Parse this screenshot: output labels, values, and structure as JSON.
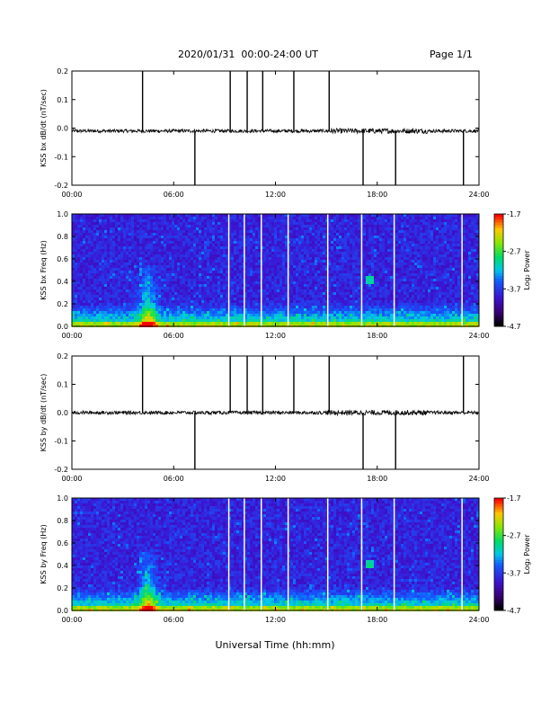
{
  "header": {
    "title": "2020/01/31  00:00-24:00 UT",
    "page": "Page 1/1"
  },
  "x_axis_title": "Universal Time (hh:mm)",
  "chart_data": [
    {
      "type": "line",
      "ylabel": "KSS bx dB/dt (nT/sec)",
      "xlim": [
        "00:00",
        "24:00"
      ],
      "x_ticks": [
        "00:00",
        "06:00",
        "12:00",
        "18:00",
        "24:00"
      ],
      "ylim": [
        -0.2,
        0.2
      ],
      "y_ticks": [
        "0.2",
        "0.1",
        "0.0",
        "-0.1",
        "-0.2"
      ],
      "baseline": -0.01,
      "spikes": [
        {
          "t": "04:10",
          "dir": "up",
          "v": 0.2
        },
        {
          "t": "07:15",
          "dir": "down",
          "v": -0.2
        },
        {
          "t": "09:20",
          "dir": "up",
          "v": 0.2
        },
        {
          "t": "10:20",
          "dir": "up",
          "v": 0.2
        },
        {
          "t": "11:15",
          "dir": "up",
          "v": 0.2
        },
        {
          "t": "13:05",
          "dir": "up",
          "v": 0.2
        },
        {
          "t": "15:10",
          "dir": "up",
          "v": 0.2
        },
        {
          "t": "17:10",
          "dir": "down",
          "v": -0.2
        },
        {
          "t": "19:05",
          "dir": "down",
          "v": -0.2
        },
        {
          "t": "23:05",
          "dir": "down",
          "v": -0.2
        }
      ]
    },
    {
      "type": "heatmap",
      "ylabel": "KSS bx Freq (Hz)",
      "xlim": [
        "00:00",
        "24:00"
      ],
      "x_ticks": [
        "00:00",
        "06:00",
        "12:00",
        "18:00",
        "24:00"
      ],
      "ylim": [
        0.0,
        1.0
      ],
      "y_ticks": [
        "1.0",
        "0.8",
        "0.6",
        "0.4",
        "0.2",
        "0.0"
      ],
      "colorbar_label": "Log₂ Power",
      "colorbar_ticks": [
        "-1.7",
        "-2.7",
        "-3.7",
        "-4.7"
      ],
      "colorbar_range": [
        -4.7,
        -1.7
      ],
      "gaps": [
        "09:15",
        "10:10",
        "11:10",
        "12:45",
        "15:05",
        "17:05",
        "19:00",
        "23:00"
      ]
    },
    {
      "type": "line",
      "ylabel": "KSS by dB/dt (nT/sec)",
      "xlim": [
        "00:00",
        "24:00"
      ],
      "x_ticks": [
        "00:00",
        "06:00",
        "12:00",
        "18:00",
        "24:00"
      ],
      "ylim": [
        -0.2,
        0.2
      ],
      "y_ticks": [
        "0.2",
        "0.1",
        "0.0",
        "-0.1",
        "-0.2"
      ],
      "baseline": 0.0,
      "spikes": [
        {
          "t": "04:10",
          "dir": "up",
          "v": 0.2
        },
        {
          "t": "07:15",
          "dir": "down",
          "v": -0.2
        },
        {
          "t": "09:20",
          "dir": "up",
          "v": 0.2
        },
        {
          "t": "10:20",
          "dir": "up",
          "v": 0.2
        },
        {
          "t": "11:15",
          "dir": "up",
          "v": 0.2
        },
        {
          "t": "13:05",
          "dir": "up",
          "v": 0.2
        },
        {
          "t": "15:10",
          "dir": "up",
          "v": 0.2
        },
        {
          "t": "17:10",
          "dir": "down",
          "v": -0.2
        },
        {
          "t": "19:05",
          "dir": "down",
          "v": -0.2
        },
        {
          "t": "23:05",
          "dir": "up",
          "v": 0.2
        }
      ]
    },
    {
      "type": "heatmap",
      "ylabel": "KSS by Freq (Hz)",
      "xlim": [
        "00:00",
        "24:00"
      ],
      "x_ticks": [
        "00:00",
        "06:00",
        "12:00",
        "18:00",
        "24:00"
      ],
      "ylim": [
        0.0,
        1.0
      ],
      "y_ticks": [
        "1.0",
        "0.8",
        "0.6",
        "0.4",
        "0.2",
        "0.0"
      ],
      "colorbar_label": "Log₂ Power",
      "colorbar_ticks": [
        "-1.7",
        "-2.7",
        "-3.7",
        "-4.7"
      ],
      "colorbar_range": [
        -4.7,
        -1.7
      ],
      "gaps": [
        "09:15",
        "10:10",
        "11:10",
        "12:45",
        "15:05",
        "17:05",
        "19:00",
        "23:00"
      ]
    }
  ]
}
